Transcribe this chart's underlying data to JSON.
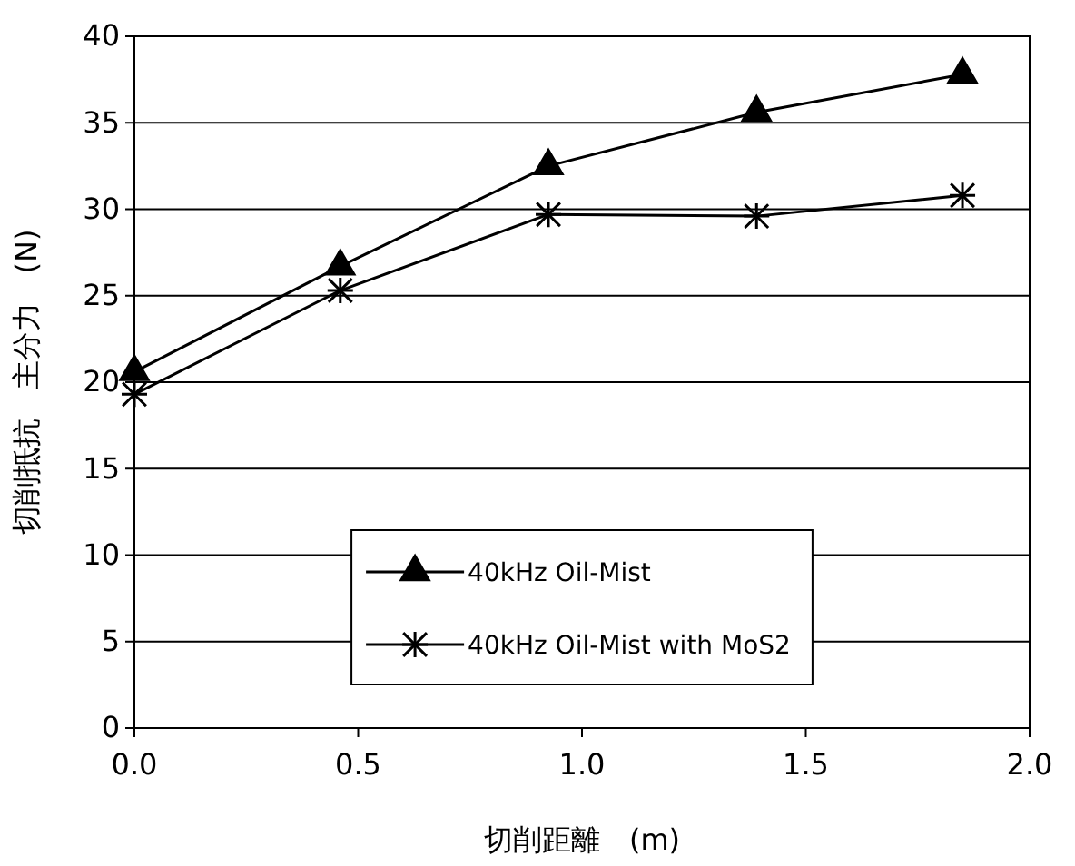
{
  "chart_data": {
    "type": "line",
    "xlabel": "切削距離　(m)",
    "ylabel": "切削抵抗　主分力　(N)",
    "x": [
      0,
      0.46,
      0.925,
      1.39,
      1.85
    ],
    "series": [
      {
        "name": "40kHz Oil-Mist",
        "color": "#000000",
        "marker": "triangle",
        "values": [
          20.6,
          26.7,
          32.5,
          35.6,
          37.8
        ]
      },
      {
        "name": "40kHz Oil-Mist with MoS2",
        "color": "#000000",
        "marker": "cross",
        "values": [
          19.3,
          25.3,
          29.7,
          29.6,
          30.8
        ]
      }
    ],
    "xlim": [
      0,
      2
    ],
    "xticks": [
      {
        "value": 0,
        "label": "0.0"
      },
      {
        "value": 0.5,
        "label": "0.5"
      },
      {
        "value": 1,
        "label": "1.0"
      },
      {
        "value": 1.5,
        "label": "1.5"
      },
      {
        "value": 2,
        "label": "2.0"
      }
    ],
    "ylim": [
      0,
      40
    ],
    "yticks": [
      0,
      5,
      10,
      15,
      20,
      25,
      30,
      35,
      40
    ],
    "grid": "y",
    "legend": "bottom",
    "line_style": "solid"
  }
}
